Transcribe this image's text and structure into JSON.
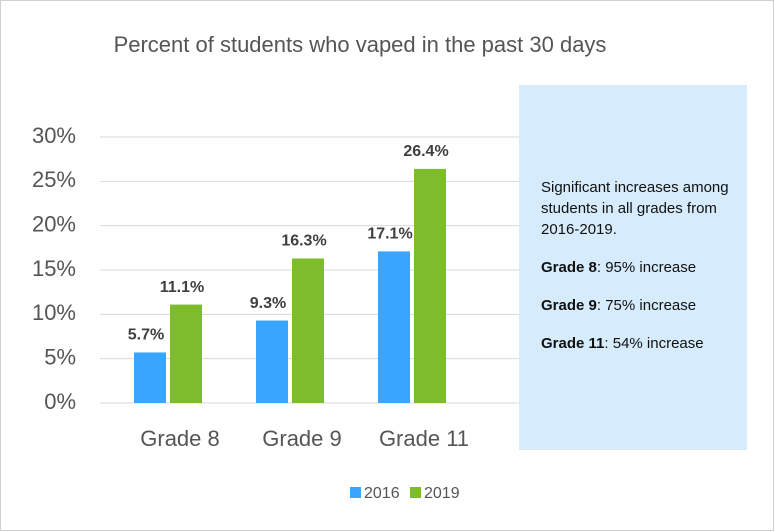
{
  "chart_data": {
    "type": "bar",
    "title": "Percent of students who vaped in the past 30 days",
    "categories": [
      "Grade 8",
      "Grade 9",
      "Grade 11"
    ],
    "series": [
      {
        "name": "2016",
        "color": "#3aa5ff",
        "values": [
          5.7,
          9.3,
          17.1
        ],
        "value_labels": [
          "5.7%",
          "9.3%",
          "17.1%"
        ]
      },
      {
        "name": "2019",
        "color": "#7dbc2a",
        "values": [
          11.1,
          16.3,
          26.4
        ],
        "value_labels": [
          "11.1%",
          "16.3%",
          "26.4%"
        ]
      }
    ],
    "ylim": [
      0,
      30
    ],
    "yticks": [
      {
        "value": 0,
        "label": "0%"
      },
      {
        "value": 5,
        "label": "5%"
      },
      {
        "value": 10,
        "label": "10%"
      },
      {
        "value": 15,
        "label": "15%"
      },
      {
        "value": 20,
        "label": "20%"
      },
      {
        "value": 25,
        "label": "25%"
      },
      {
        "value": 30,
        "label": "30%"
      }
    ],
    "grid": true,
    "legend": "bottom",
    "annotation": {
      "text": "Significant increases among students in all grades from 2016-2019.",
      "items": [
        {
          "bold": "Grade 8",
          "text": ": 95% increase"
        },
        {
          "bold": "Grade 9",
          "text": ": 75% increase"
        },
        {
          "bold": "Grade 11",
          "text": ": 54% increase"
        }
      ]
    }
  }
}
